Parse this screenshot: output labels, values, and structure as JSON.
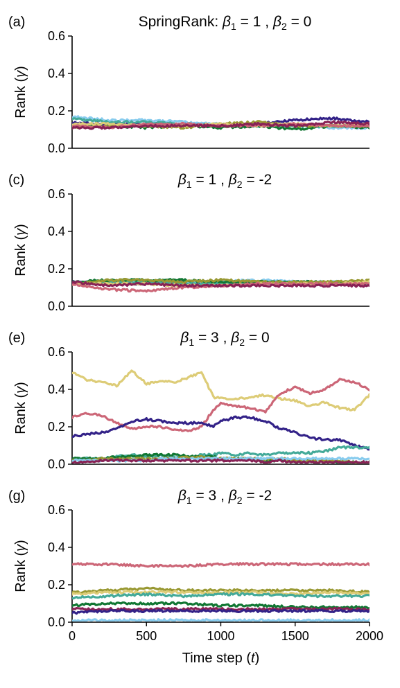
{
  "figure": {
    "xlabel": "Time step (t)",
    "ylabel": "Rank (γ)"
  },
  "chart_data": [
    {
      "type": "line",
      "tag": "(a)",
      "title": "SpringRank: β1 = 1 ,  β2 = 0",
      "title_parts": [
        "SpringRank: ",
        "β",
        "1",
        " = 1 ,  ",
        "β",
        "2",
        " = 0"
      ],
      "xlabel": "",
      "ylabel": "Rank (γ)",
      "xlim": [
        0,
        2000
      ],
      "ylim": [
        0,
        0.6
      ],
      "yticks": [
        "0.0",
        "0.2",
        "0.4",
        "0.6"
      ],
      "xticks": [],
      "x": [
        0,
        250,
        500,
        750,
        1000,
        1250,
        1500,
        1750,
        2000
      ],
      "series": [
        {
          "color": "#332288",
          "values": [
            0.14,
            0.13,
            0.13,
            0.13,
            0.12,
            0.13,
            0.15,
            0.16,
            0.14
          ]
        },
        {
          "color": "#88CCEE",
          "values": [
            0.17,
            0.15,
            0.15,
            0.14,
            0.13,
            0.12,
            0.12,
            0.11,
            0.11
          ]
        },
        {
          "color": "#44AA99",
          "values": [
            0.16,
            0.14,
            0.14,
            0.13,
            0.12,
            0.12,
            0.12,
            0.12,
            0.12
          ]
        },
        {
          "color": "#117733",
          "values": [
            0.12,
            0.12,
            0.11,
            0.12,
            0.11,
            0.12,
            0.1,
            0.12,
            0.11
          ]
        },
        {
          "color": "#999933",
          "values": [
            0.11,
            0.12,
            0.12,
            0.11,
            0.13,
            0.14,
            0.12,
            0.12,
            0.12
          ]
        },
        {
          "color": "#DDCC77",
          "values": [
            0.13,
            0.13,
            0.12,
            0.12,
            0.13,
            0.12,
            0.13,
            0.12,
            0.13
          ]
        },
        {
          "color": "#CC6677",
          "values": [
            0.12,
            0.11,
            0.13,
            0.13,
            0.12,
            0.12,
            0.13,
            0.12,
            0.12
          ]
        },
        {
          "color": "#882255",
          "values": [
            0.11,
            0.11,
            0.12,
            0.12,
            0.12,
            0.13,
            0.12,
            0.14,
            0.13
          ]
        }
      ]
    },
    {
      "type": "line",
      "tag": "(c)",
      "title": "β1 = 1 ,  β2 = -2",
      "title_parts": [
        "",
        "β",
        "1",
        " = 1 ,  ",
        "β",
        "2",
        " = -2"
      ],
      "xlabel": "",
      "ylabel": "Rank (γ)",
      "xlim": [
        0,
        2000
      ],
      "ylim": [
        0,
        0.6
      ],
      "yticks": [
        "0.0",
        "0.2",
        "0.4",
        "0.6"
      ],
      "xticks": [],
      "x": [
        0,
        250,
        500,
        750,
        1000,
        1250,
        1500,
        1750,
        2000
      ],
      "series": [
        {
          "color": "#332288",
          "values": [
            0.13,
            0.12,
            0.12,
            0.13,
            0.12,
            0.12,
            0.13,
            0.12,
            0.12
          ]
        },
        {
          "color": "#88CCEE",
          "values": [
            0.13,
            0.13,
            0.13,
            0.13,
            0.13,
            0.14,
            0.13,
            0.13,
            0.13
          ]
        },
        {
          "color": "#44AA99",
          "values": [
            0.12,
            0.13,
            0.13,
            0.12,
            0.12,
            0.13,
            0.12,
            0.12,
            0.12
          ]
        },
        {
          "color": "#117733",
          "values": [
            0.13,
            0.14,
            0.14,
            0.14,
            0.13,
            0.13,
            0.13,
            0.13,
            0.13
          ]
        },
        {
          "color": "#999933",
          "values": [
            0.12,
            0.14,
            0.14,
            0.13,
            0.14,
            0.13,
            0.13,
            0.13,
            0.14
          ]
        },
        {
          "color": "#DDCC77",
          "values": [
            0.12,
            0.12,
            0.12,
            0.11,
            0.11,
            0.12,
            0.12,
            0.12,
            0.13
          ]
        },
        {
          "color": "#CC6677",
          "values": [
            0.12,
            0.09,
            0.08,
            0.1,
            0.11,
            0.12,
            0.12,
            0.12,
            0.12
          ]
        },
        {
          "color": "#882255",
          "values": [
            0.13,
            0.11,
            0.12,
            0.11,
            0.11,
            0.11,
            0.11,
            0.11,
            0.11
          ]
        }
      ]
    },
    {
      "type": "line",
      "tag": "(e)",
      "title": "β1 = 3 ,  β2 = 0",
      "title_parts": [
        "",
        "β",
        "1",
        " = 3 ,  ",
        "β",
        "2",
        " = 0"
      ],
      "xlabel": "",
      "ylabel": "Rank (γ)",
      "xlim": [
        0,
        2000
      ],
      "ylim": [
        0,
        0.6
      ],
      "yticks": [
        "0.0",
        "0.2",
        "0.4",
        "0.6"
      ],
      "xticks": [],
      "x": [
        0,
        100,
        200,
        300,
        400,
        500,
        600,
        700,
        800,
        870,
        950,
        1000,
        1100,
        1200,
        1300,
        1400,
        1500,
        1600,
        1700,
        1800,
        1900,
        2000
      ],
      "series": [
        {
          "color": "#DDCC77",
          "values": [
            0.49,
            0.45,
            0.44,
            0.42,
            0.5,
            0.43,
            0.44,
            0.44,
            0.47,
            0.49,
            0.36,
            0.35,
            0.35,
            0.36,
            0.37,
            0.35,
            0.34,
            0.31,
            0.33,
            0.3,
            0.29,
            0.37
          ]
        },
        {
          "color": "#CC6677",
          "values": [
            0.25,
            0.27,
            0.26,
            0.22,
            0.19,
            0.2,
            0.2,
            0.18,
            0.18,
            0.2,
            0.29,
            0.33,
            0.31,
            0.3,
            0.28,
            0.38,
            0.41,
            0.38,
            0.4,
            0.45,
            0.44,
            0.4
          ]
        },
        {
          "color": "#332288",
          "values": [
            0.15,
            0.16,
            0.17,
            0.19,
            0.23,
            0.24,
            0.23,
            0.22,
            0.22,
            0.22,
            0.2,
            0.23,
            0.25,
            0.25,
            0.23,
            0.19,
            0.17,
            0.14,
            0.13,
            0.13,
            0.1,
            0.08
          ]
        },
        {
          "color": "#44AA99",
          "values": [
            0.03,
            0.03,
            0.03,
            0.04,
            0.05,
            0.04,
            0.05,
            0.04,
            0.04,
            0.05,
            0.05,
            0.06,
            0.05,
            0.06,
            0.05,
            0.06,
            0.06,
            0.06,
            0.07,
            0.09,
            0.09,
            0.09
          ]
        },
        {
          "color": "#117733",
          "values": [
            0.03,
            0.03,
            0.03,
            0.04,
            0.04,
            0.05,
            0.05,
            0.05,
            0.04,
            0.04,
            0.04,
            0.03,
            0.03,
            0.03,
            0.02,
            0.02,
            0.02,
            0.02,
            0.02,
            0.01,
            0.01,
            0.01
          ]
        },
        {
          "color": "#999933",
          "values": [
            0.02,
            0.02,
            0.03,
            0.03,
            0.03,
            0.03,
            0.03,
            0.03,
            0.04,
            0.04,
            0.03,
            0.03,
            0.03,
            0.03,
            0.03,
            0.03,
            0.02,
            0.02,
            0.02,
            0.02,
            0.01,
            0.01
          ]
        },
        {
          "color": "#88CCEE",
          "values": [
            0.02,
            0.02,
            0.02,
            0.02,
            0.02,
            0.02,
            0.03,
            0.03,
            0.03,
            0.03,
            0.03,
            0.03,
            0.03,
            0.03,
            0.03,
            0.03,
            0.03,
            0.03,
            0.03,
            0.03,
            0.03,
            0.03
          ]
        },
        {
          "color": "#882255",
          "values": [
            0.01,
            0.01,
            0.02,
            0.02,
            0.02,
            0.02,
            0.02,
            0.02,
            0.02,
            0.02,
            0.02,
            0.02,
            0.02,
            0.02,
            0.01,
            0.02,
            0.01,
            0.01,
            0.01,
            0.01,
            0.01,
            0.01
          ]
        }
      ]
    },
    {
      "type": "line",
      "tag": "(g)",
      "title": "β1 = 3 ,  β2 = -2",
      "title_parts": [
        "",
        "β",
        "1",
        " = 3 ,  ",
        "β",
        "2",
        " = -2"
      ],
      "xlabel": "Time step (t)",
      "ylabel": "Rank (γ)",
      "xlim": [
        0,
        2000
      ],
      "ylim": [
        0,
        0.6
      ],
      "yticks": [
        "0.0",
        "0.2",
        "0.4",
        "0.6"
      ],
      "xticks": [
        "0",
        "500",
        "1000",
        "1500",
        "2000"
      ],
      "x": [
        0,
        250,
        500,
        750,
        1000,
        1250,
        1500,
        1750,
        2000
      ],
      "series": [
        {
          "color": "#CC6677",
          "values": [
            0.31,
            0.31,
            0.3,
            0.3,
            0.31,
            0.31,
            0.31,
            0.31,
            0.31
          ]
        },
        {
          "color": "#999933",
          "values": [
            0.16,
            0.17,
            0.18,
            0.17,
            0.17,
            0.17,
            0.17,
            0.17,
            0.16
          ]
        },
        {
          "color": "#DDCC77",
          "values": [
            0.15,
            0.16,
            0.16,
            0.16,
            0.16,
            0.16,
            0.15,
            0.16,
            0.15
          ]
        },
        {
          "color": "#44AA99",
          "values": [
            0.13,
            0.14,
            0.15,
            0.14,
            0.15,
            0.15,
            0.14,
            0.14,
            0.14
          ]
        },
        {
          "color": "#117733",
          "values": [
            0.09,
            0.1,
            0.1,
            0.1,
            0.09,
            0.09,
            0.08,
            0.08,
            0.08
          ]
        },
        {
          "color": "#882255",
          "values": [
            0.07,
            0.07,
            0.07,
            0.07,
            0.07,
            0.07,
            0.07,
            0.07,
            0.07
          ]
        },
        {
          "color": "#332288",
          "values": [
            0.05,
            0.06,
            0.06,
            0.06,
            0.06,
            0.06,
            0.06,
            0.06,
            0.06
          ]
        },
        {
          "color": "#88CCEE",
          "values": [
            0.01,
            0.01,
            0.01,
            0.01,
            0.01,
            0.01,
            0.01,
            0.01,
            0.01
          ]
        }
      ]
    }
  ]
}
